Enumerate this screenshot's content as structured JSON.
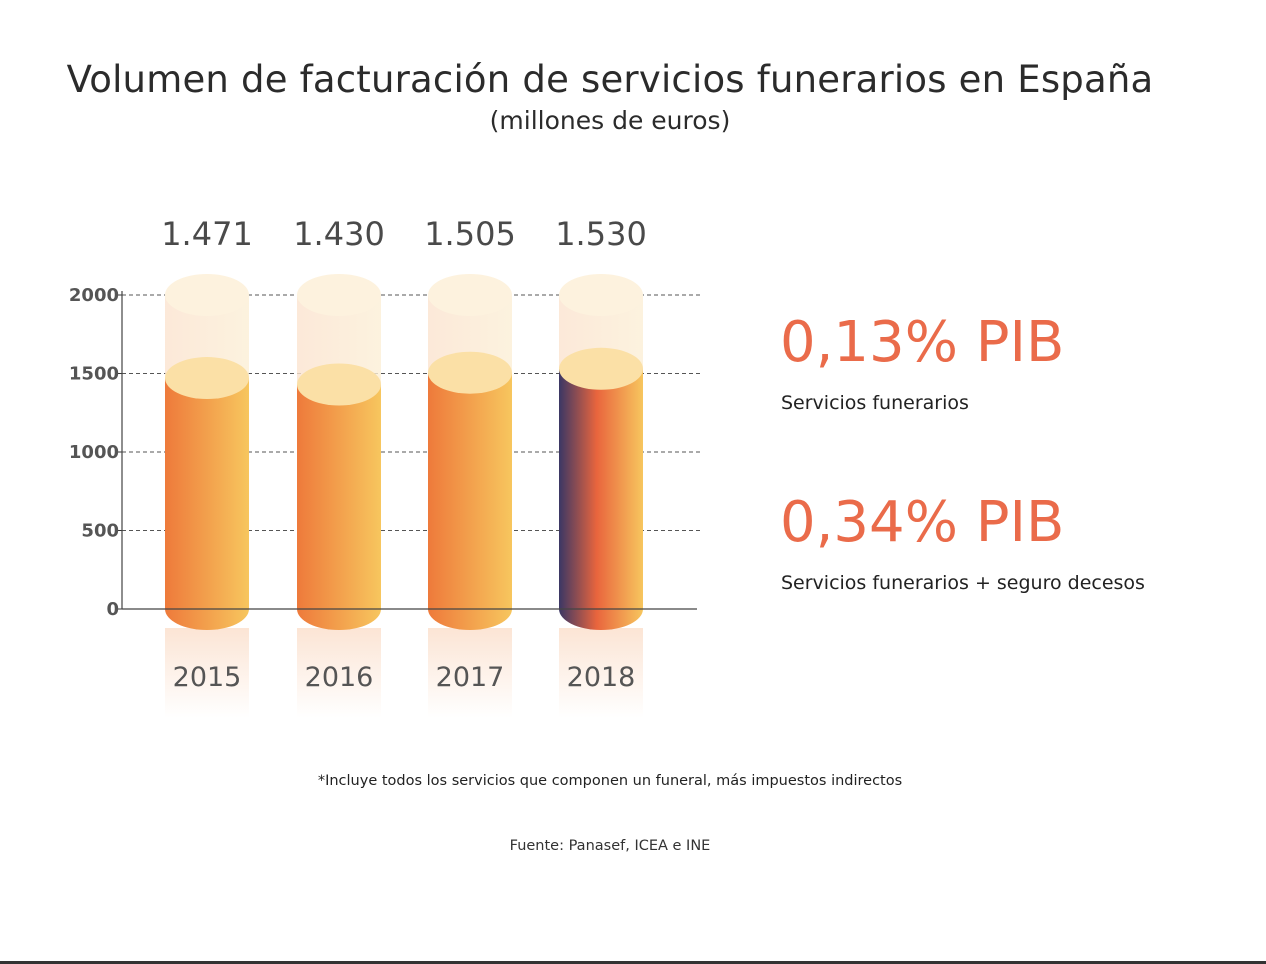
{
  "chart_data": {
    "type": "bar",
    "title": "Volumen de facturación de servicios funerarios en España",
    "subtitle": "(millones de euros)",
    "categories": [
      "2015",
      "2016",
      "2017",
      "2018"
    ],
    "values": [
      1471,
      1430,
      1505,
      1530
    ],
    "value_labels": [
      "1.471",
      "1.430",
      "1.505",
      "1.530"
    ],
    "ylim": [
      0,
      2000
    ],
    "yticks": [
      0,
      500,
      1000,
      1500,
      2000
    ],
    "grid": true,
    "highlight_category": "2018"
  },
  "stats": [
    {
      "value": "0,13% PIB",
      "label": "Servicios funerarios"
    },
    {
      "value": "0,34% PIB",
      "label": "Servicios funerarios + seguro decesos"
    }
  ],
  "footnote": "*Incluye todos los servicios que componen un funeral, más impuestos indirectos",
  "source": "Fuente: Panasef, ICEA e INE",
  "colors": {
    "accent": "#ea6b4a",
    "bar_left": "#ee7c3c",
    "bar_right": "#f6c25c",
    "bar_top": "#fbe2a6",
    "highlight_dark": "#3d3763"
  }
}
